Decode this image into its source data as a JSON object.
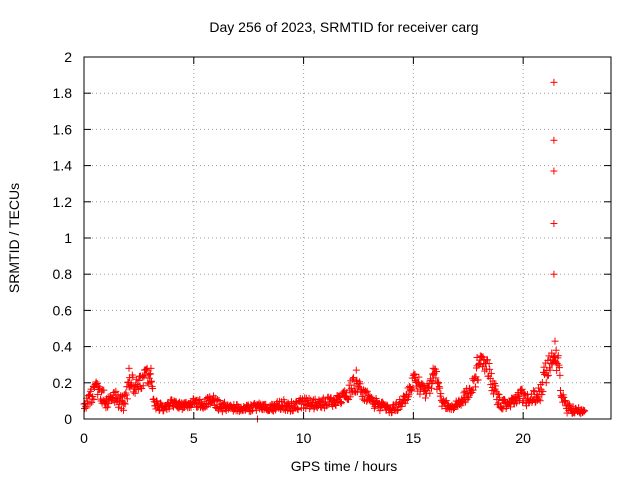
{
  "chart_data": {
    "type": "scatter",
    "title": "Day 256 of 2023, SRMTID for receiver carg",
    "xlabel": "GPS time / hours",
    "ylabel": "SRMTID / TECUs",
    "xlim": [
      0,
      24
    ],
    "ylim": [
      0,
      2
    ],
    "x_ticks": [
      0,
      5,
      10,
      15,
      20
    ],
    "x_tick_labels": [
      "0",
      "5",
      "10",
      "15",
      "20"
    ],
    "y_ticks": [
      0,
      0.2,
      0.4,
      0.6,
      0.8,
      1,
      1.2,
      1.4,
      1.6,
      1.8,
      2
    ],
    "y_tick_labels": [
      "0",
      "0.2",
      "0.4",
      "0.6",
      "0.8",
      "1",
      "1.2",
      "1.4",
      "1.6",
      "1.8",
      "2"
    ],
    "grid": true,
    "marker": "+",
    "color": "#ff0000",
    "series": [
      {
        "name": "SRMTID",
        "profile_hours": [
          0.0,
          0.3,
          0.6,
          1.0,
          1.4,
          1.8,
          2.1,
          2.4,
          2.8,
          3.0,
          3.2,
          3.6,
          4.0,
          4.5,
          5.0,
          5.5,
          5.8,
          6.2,
          6.8,
          7.5,
          8.0,
          8.5,
          9.0,
          9.5,
          10.0,
          10.5,
          11.0,
          11.5,
          12.0,
          12.3,
          12.6,
          13.0,
          13.5,
          14.0,
          14.5,
          14.8,
          15.0,
          15.2,
          15.5,
          15.8,
          16.0,
          16.3,
          16.8,
          17.2,
          17.6,
          17.9,
          18.1,
          18.4,
          18.7,
          19.0,
          19.5,
          19.9,
          20.2,
          20.5,
          20.8,
          21.0,
          21.2,
          21.4,
          21.6,
          21.8,
          22.0,
          22.4,
          22.8
        ],
        "profile_center": [
          0.08,
          0.12,
          0.17,
          0.1,
          0.12,
          0.08,
          0.2,
          0.17,
          0.22,
          0.24,
          0.08,
          0.06,
          0.08,
          0.07,
          0.09,
          0.08,
          0.11,
          0.07,
          0.06,
          0.06,
          0.07,
          0.06,
          0.08,
          0.07,
          0.09,
          0.08,
          0.09,
          0.1,
          0.13,
          0.2,
          0.16,
          0.1,
          0.07,
          0.05,
          0.09,
          0.15,
          0.22,
          0.2,
          0.14,
          0.2,
          0.25,
          0.08,
          0.07,
          0.1,
          0.16,
          0.24,
          0.33,
          0.28,
          0.15,
          0.08,
          0.09,
          0.14,
          0.1,
          0.12,
          0.15,
          0.25,
          0.3,
          0.33,
          0.29,
          0.1,
          0.06,
          0.04,
          0.06
        ],
        "profile_spread": [
          0.03,
          0.04,
          0.05,
          0.04,
          0.04,
          0.04,
          0.06,
          0.05,
          0.06,
          0.05,
          0.03,
          0.02,
          0.03,
          0.02,
          0.03,
          0.03,
          0.03,
          0.03,
          0.02,
          0.02,
          0.02,
          0.02,
          0.03,
          0.03,
          0.03,
          0.03,
          0.03,
          0.03,
          0.04,
          0.06,
          0.05,
          0.04,
          0.03,
          0.02,
          0.03,
          0.04,
          0.05,
          0.05,
          0.04,
          0.05,
          0.05,
          0.03,
          0.02,
          0.03,
          0.05,
          0.06,
          0.04,
          0.05,
          0.05,
          0.03,
          0.03,
          0.04,
          0.04,
          0.04,
          0.05,
          0.07,
          0.06,
          0.06,
          0.06,
          0.04,
          0.03,
          0.02,
          0.03
        ],
        "end_hour": 22.8,
        "sample_step_hours": 0.025,
        "outliers": [
          {
            "x": 21.4,
            "y": 1.86
          },
          {
            "x": 21.4,
            "y": 1.54
          },
          {
            "x": 21.4,
            "y": 1.37
          },
          {
            "x": 21.4,
            "y": 1.08
          },
          {
            "x": 21.4,
            "y": 0.8
          },
          {
            "x": 21.45,
            "y": 0.43
          },
          {
            "x": 21.5,
            "y": 0.38
          },
          {
            "x": 2.05,
            "y": 0.28
          },
          {
            "x": 3.05,
            "y": 0.28
          },
          {
            "x": 12.4,
            "y": 0.27
          },
          {
            "x": 15.9,
            "y": 0.28
          },
          {
            "x": 17.9,
            "y": 0.34
          },
          {
            "x": 7.9,
            "y": 0.0
          }
        ]
      }
    ]
  }
}
